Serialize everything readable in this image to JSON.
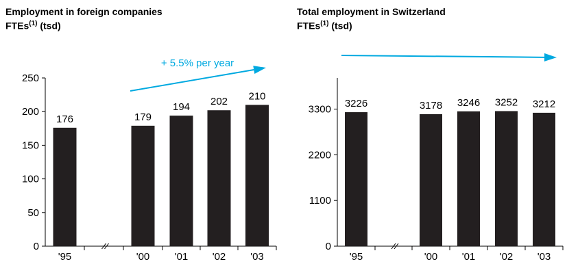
{
  "chart_data": [
    {
      "type": "bar",
      "title_line1": "Employment in foreign companies",
      "title_line2": "FTEs",
      "title_sup": "(1)",
      "title_unit": "(tsd)",
      "categories": [
        "'95",
        "'00",
        "'01",
        "'02",
        "'03"
      ],
      "values": [
        176,
        179,
        194,
        202,
        210
      ],
      "ylim": [
        0,
        250
      ],
      "yticks": [
        0,
        50,
        100,
        150,
        200,
        250
      ],
      "axis_break": true,
      "annotation": "+ 5.5% per year",
      "bar_color": "#231f20",
      "arrow_color": "#00a9e0"
    },
    {
      "type": "bar",
      "title_line1": "Total employment in Switzerland",
      "title_line2": "FTEs",
      "title_sup": "(1)",
      "title_unit": "(tsd)",
      "categories": [
        "'95",
        "'00",
        "'01",
        "'02",
        "'03"
      ],
      "values": [
        3226,
        3178,
        3246,
        3252,
        3212
      ],
      "ylim": [
        0,
        4050
      ],
      "yticks": [
        0,
        1100,
        2200,
        3300
      ],
      "axis_break": true,
      "annotation": "",
      "bar_color": "#231f20",
      "arrow_color": "#00a9e0"
    }
  ]
}
